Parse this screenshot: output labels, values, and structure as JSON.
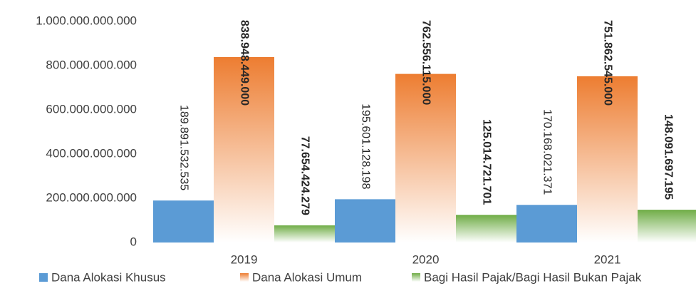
{
  "chart_data": {
    "type": "bar",
    "categories": [
      "2019",
      "2020",
      "2021"
    ],
    "series": [
      {
        "name": "Dana Alokasi Khusus",
        "color": "#5b9bd5",
        "values": [
          189891532535,
          195601128198,
          170168021371
        ],
        "value_labels": [
          "189.891.532.535",
          "195.601.128.198",
          "170.168.021.371"
        ]
      },
      {
        "name": "Dana Alokasi Umum",
        "color": "#ed7d31",
        "values": [
          838948449000,
          762556115000,
          751862545000
        ],
        "value_labels": [
          "838.948.449.000",
          "762.556.115.000",
          "751.862.545.000"
        ]
      },
      {
        "name": "Bagi Hasil Pajak/Bagi Hasil Bukan Pajak",
        "color": "#70ad47",
        "values": [
          77654424279,
          125014721701,
          148091697195
        ],
        "value_labels": [
          "77.654.424.279",
          "125.014.721.701",
          "148.091.697.195"
        ]
      }
    ],
    "ylim": [
      0,
      1000000000000
    ],
    "yticks": [
      0,
      {
        "value": 200000000000,
        "label": "200.000.000.000"
      },
      {
        "value": 400000000000,
        "label": "400.000.000.000"
      },
      {
        "value": 600000000000,
        "label": "600.000.000.000"
      },
      {
        "value": 800000000000,
        "label": "800.000.000.000"
      },
      {
        "value": 1000000000000,
        "label": "1.000.000.000.000"
      }
    ],
    "legend": "bottom"
  }
}
